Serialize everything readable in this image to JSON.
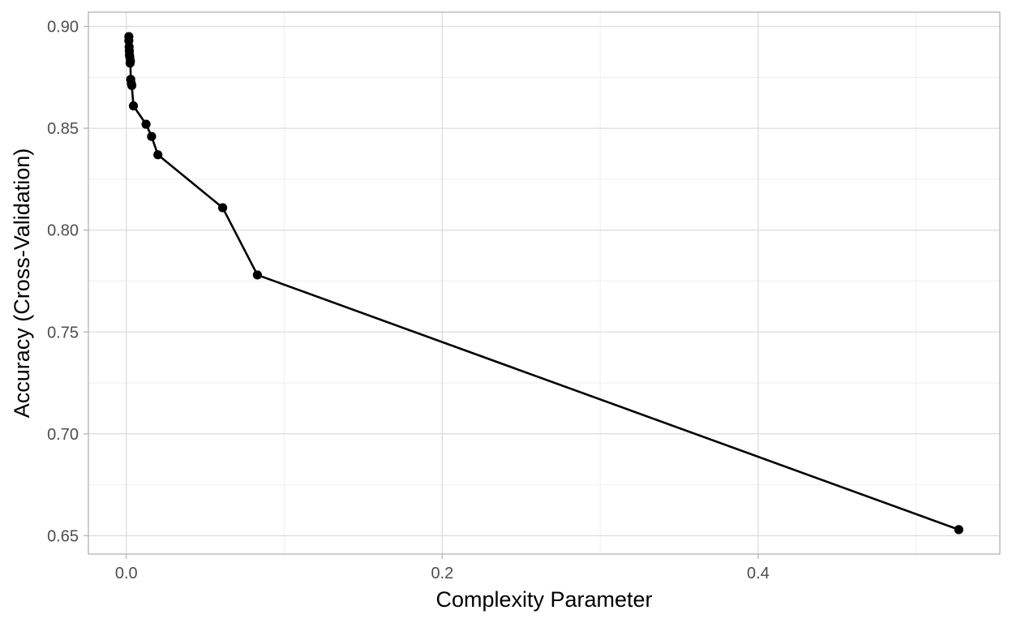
{
  "chart_data": {
    "type": "line",
    "title": "",
    "xlabel": "Complexity Parameter",
    "ylabel": "Accuracy (Cross-Validation)",
    "xlim": [
      -0.024,
      0.553
    ],
    "ylim": [
      0.641,
      0.907
    ],
    "x_ticks": [
      {
        "value": 0.0,
        "label": "0.0"
      },
      {
        "value": 0.2,
        "label": "0.2"
      },
      {
        "value": 0.4,
        "label": "0.4"
      }
    ],
    "y_ticks": [
      {
        "value": 0.65,
        "label": "0.65"
      },
      {
        "value": 0.7,
        "label": "0.70"
      },
      {
        "value": 0.75,
        "label": "0.75"
      },
      {
        "value": 0.8,
        "label": "0.80"
      },
      {
        "value": 0.85,
        "label": "0.85"
      },
      {
        "value": 0.9,
        "label": "0.90"
      }
    ],
    "grid": true,
    "series": [
      {
        "x": [
          0.0016,
          0.0016,
          0.0018,
          0.0019,
          0.002,
          0.0022,
          0.0024,
          0.0026,
          0.0028,
          0.0032,
          0.0035,
          0.0045,
          0.0125,
          0.016,
          0.02,
          0.061,
          0.083,
          0.527
        ],
        "y": [
          0.895,
          0.893,
          0.89,
          0.888,
          0.886,
          0.885,
          0.882,
          0.883,
          0.874,
          0.872,
          0.871,
          0.861,
          0.852,
          0.846,
          0.837,
          0.811,
          0.778,
          0.653
        ]
      }
    ],
    "colors": {
      "line": "#000000",
      "point": "#000000",
      "grid_major": "#dedede",
      "grid_minor": "#efefef",
      "panel_border": "#b3b3b3",
      "tick_text": "#4d4d4d",
      "title_text": "#000000"
    }
  }
}
